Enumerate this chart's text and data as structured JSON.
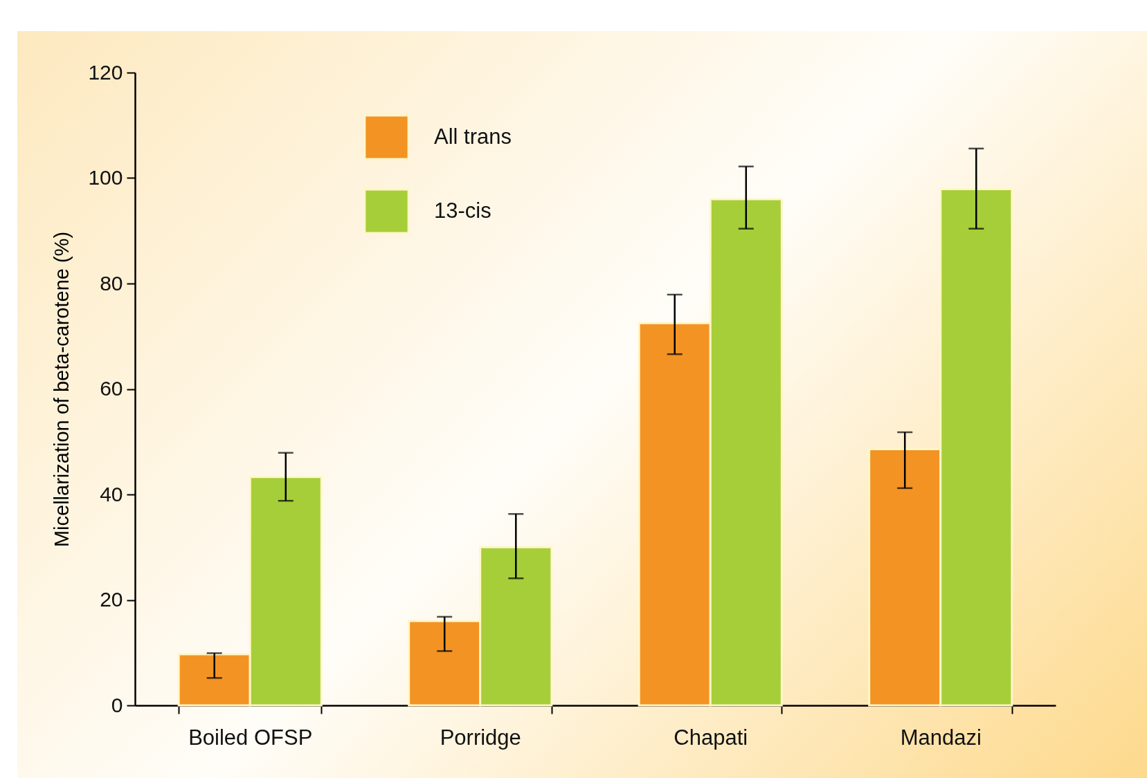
{
  "chart_data": {
    "type": "bar",
    "ylabel": "Micellarization of beta-carotene (%)",
    "categories": [
      "Boiled OFSP",
      "Porridge",
      "Chapati",
      "Mandazi"
    ],
    "series": [
      {
        "name": "All trans",
        "color": "#f39323",
        "values": [
          9.7,
          16.0,
          72.5,
          48.6
        ],
        "errors": [
          [
            5.2,
            9.9
          ],
          [
            10.3,
            16.8
          ],
          [
            66.6,
            77.9
          ],
          [
            41.2,
            51.8
          ]
        ]
      },
      {
        "name": "13-cis",
        "color": "#a6ce39",
        "values": [
          43.3,
          30.0,
          96.0,
          97.9
        ],
        "errors": [
          [
            38.8,
            47.9
          ],
          [
            24.1,
            36.3
          ],
          [
            90.4,
            102.2
          ],
          [
            90.4,
            105.6
          ]
        ]
      }
    ],
    "ylim": [
      0,
      120
    ],
    "yticks": [
      0,
      20,
      40,
      60,
      80,
      100,
      120
    ],
    "grid": false,
    "legend": "top left"
  }
}
